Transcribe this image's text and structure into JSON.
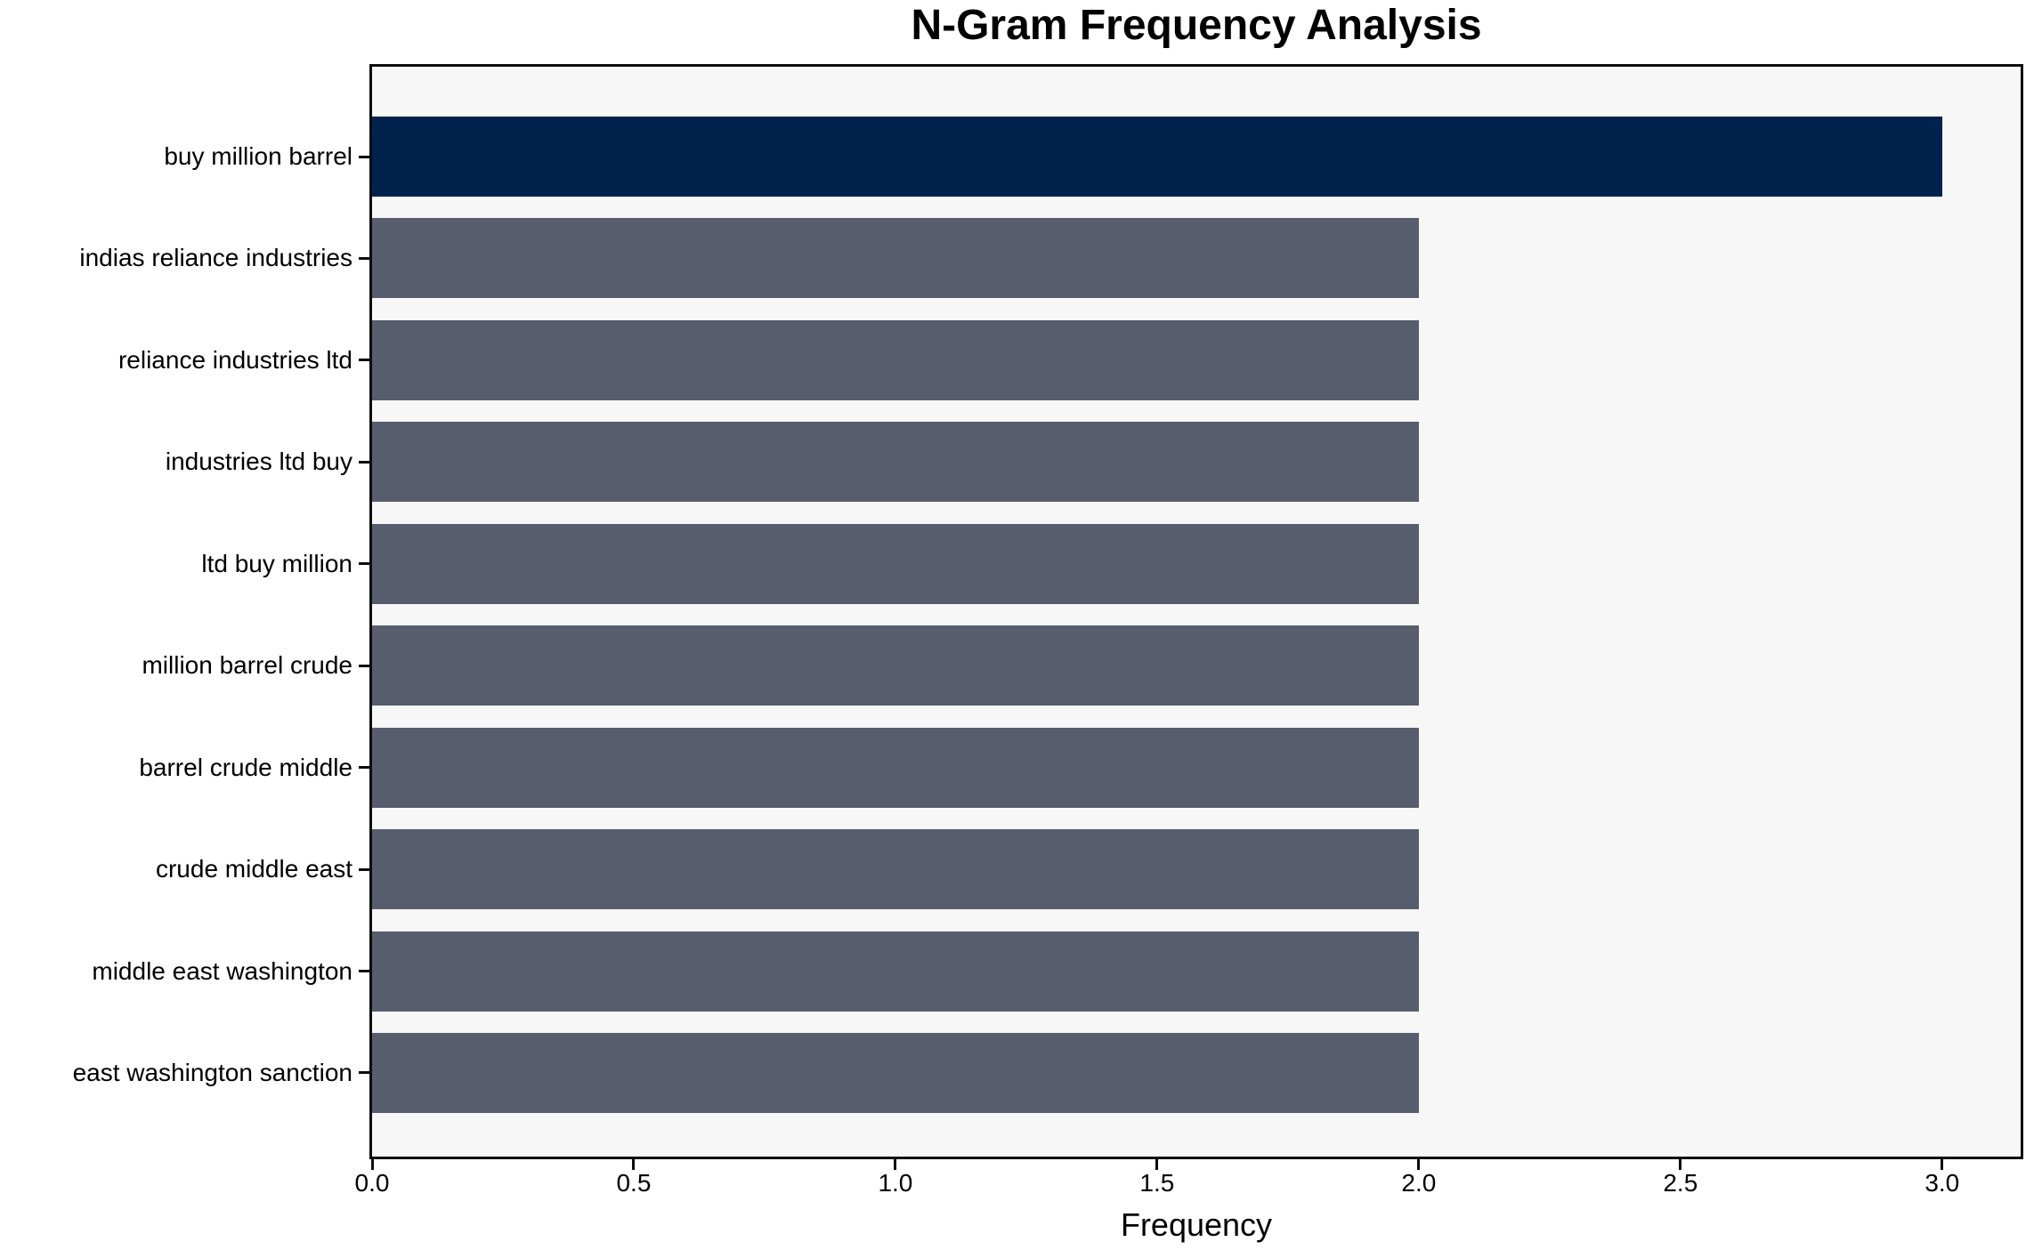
{
  "chart_data": {
    "type": "bar",
    "orientation": "horizontal",
    "title": "N-Gram Frequency Analysis",
    "xlabel": "Frequency",
    "ylabel": "",
    "categories": [
      "buy million barrel",
      "indias reliance industries",
      "reliance industries ltd",
      "industries ltd buy",
      "ltd buy million",
      "million barrel crude",
      "barrel crude middle",
      "crude middle east",
      "middle east washington",
      "east washington sanction"
    ],
    "values": [
      3,
      2,
      2,
      2,
      2,
      2,
      2,
      2,
      2,
      2
    ],
    "colors": [
      "#00234d",
      "#575d6d",
      "#575d6d",
      "#575d6d",
      "#575d6d",
      "#575d6d",
      "#575d6d",
      "#575d6d",
      "#575d6d",
      "#575d6d"
    ],
    "highlight_color": "#00234d",
    "default_bar_color": "#575d6d",
    "plot_background": "#f7f7f8",
    "figure_background": "#ffffff",
    "spine_color": "#0d0d0d",
    "xlim": [
      0,
      3.15
    ],
    "xticks": [
      0,
      0.5,
      1,
      1.5,
      2,
      2.5,
      3
    ],
    "xtick_labels": [
      "0.0",
      "0.5",
      "1.0",
      "1.5",
      "2.0",
      "2.5",
      "3.0"
    ],
    "grid": false,
    "legend": "none"
  }
}
